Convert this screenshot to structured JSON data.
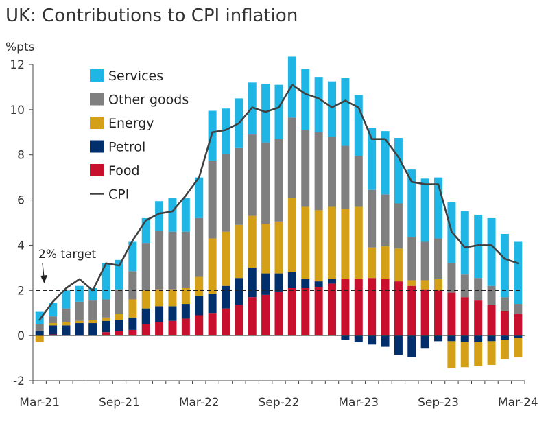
{
  "chart_data": {
    "type": "bar",
    "stacked": true,
    "title": "UK: Contributions to CPI inflation",
    "ylabel": "%pts",
    "ylim": [
      -2,
      12
    ],
    "yticks": [
      -2,
      0,
      2,
      4,
      6,
      8,
      10,
      12
    ],
    "xtick_labels": [
      "Mar-21",
      "Sep-21",
      "Mar-22",
      "Sep-22",
      "Mar-23",
      "Sep-23",
      "Mar-24"
    ],
    "categories": [
      "Mar-21",
      "Apr-21",
      "May-21",
      "Jun-21",
      "Jul-21",
      "Aug-21",
      "Sep-21",
      "Oct-21",
      "Nov-21",
      "Dec-21",
      "Jan-22",
      "Feb-22",
      "Mar-22",
      "Apr-22",
      "May-22",
      "Jun-22",
      "Jul-22",
      "Aug-22",
      "Sep-22",
      "Oct-22",
      "Nov-22",
      "Dec-22",
      "Jan-23",
      "Feb-23",
      "Mar-23",
      "Apr-23",
      "May-23",
      "Jun-23",
      "Jul-23",
      "Aug-23",
      "Sep-23",
      "Oct-23",
      "Nov-23",
      "Dec-23",
      "Jan-24",
      "Feb-24",
      "Mar-24"
    ],
    "series": [
      {
        "name": "Food",
        "color": "#c8102e",
        "values": [
          0.0,
          0.05,
          0.0,
          0.0,
          0.0,
          0.15,
          0.2,
          0.25,
          0.5,
          0.6,
          0.65,
          0.75,
          0.9,
          1.0,
          1.2,
          1.35,
          1.7,
          1.8,
          1.95,
          2.1,
          2.1,
          2.15,
          2.3,
          2.5,
          2.5,
          2.55,
          2.5,
          2.4,
          2.2,
          2.05,
          2.0,
          1.9,
          1.7,
          1.55,
          1.35,
          1.1,
          0.95
        ]
      },
      {
        "name": "Petrol",
        "color": "#002f6c",
        "values": [
          0.2,
          0.4,
          0.45,
          0.55,
          0.55,
          0.5,
          0.5,
          0.55,
          0.7,
          0.7,
          0.65,
          0.65,
          0.85,
          0.85,
          1.0,
          1.2,
          1.3,
          0.95,
          0.8,
          0.7,
          0.4,
          0.25,
          0.2,
          -0.2,
          -0.3,
          -0.4,
          -0.5,
          -0.85,
          -0.95,
          -0.55,
          -0.25,
          -0.25,
          -0.3,
          -0.3,
          -0.25,
          -0.2,
          -0.1
        ]
      },
      {
        "name": "Energy",
        "color": "#d4a017",
        "values": [
          -0.3,
          0.1,
          0.15,
          0.1,
          0.15,
          0.15,
          0.25,
          0.8,
          0.8,
          0.75,
          0.75,
          0.7,
          0.85,
          2.45,
          2.4,
          2.35,
          2.3,
          2.2,
          2.3,
          3.3,
          3.2,
          3.15,
          3.2,
          3.1,
          3.2,
          1.35,
          1.45,
          1.45,
          0.25,
          0.4,
          0.5,
          -1.2,
          -1.1,
          -1.05,
          -1.05,
          -0.85,
          -0.85
        ]
      },
      {
        "name": "Other goods",
        "color": "#7f7f7f",
        "values": [
          0.3,
          0.3,
          0.6,
          0.85,
          0.85,
          0.8,
          1.1,
          1.25,
          2.1,
          2.6,
          2.55,
          2.5,
          2.6,
          3.45,
          3.45,
          3.4,
          3.6,
          3.6,
          3.65,
          3.55,
          3.4,
          3.45,
          3.1,
          2.8,
          2.25,
          2.55,
          2.3,
          2.0,
          1.9,
          1.7,
          1.8,
          1.3,
          1.0,
          1.0,
          0.85,
          0.6,
          0.45
        ]
      },
      {
        "name": "Services",
        "color": "#1fb6e6",
        "values": [
          0.55,
          0.6,
          0.8,
          0.7,
          0.55,
          1.6,
          1.3,
          1.3,
          1.1,
          1.3,
          1.5,
          1.5,
          1.8,
          2.2,
          2.0,
          2.2,
          2.3,
          2.6,
          2.4,
          2.7,
          2.7,
          2.45,
          2.45,
          3.0,
          2.7,
          2.75,
          2.8,
          2.9,
          3.0,
          2.8,
          2.7,
          2.7,
          2.8,
          2.8,
          3.0,
          2.8,
          2.75
        ]
      }
    ],
    "cpi": {
      "name": "CPI",
      "color": "#404040",
      "values": [
        0.7,
        1.5,
        2.1,
        2.5,
        2.0,
        3.2,
        3.1,
        4.2,
        5.1,
        5.4,
        5.5,
        6.2,
        7.0,
        9.0,
        9.1,
        9.4,
        10.1,
        9.9,
        10.1,
        11.1,
        10.7,
        10.5,
        10.1,
        10.4,
        10.1,
        8.7,
        8.7,
        7.9,
        6.8,
        6.7,
        6.7,
        4.6,
        3.9,
        4.0,
        4.0,
        3.4,
        3.2
      ]
    },
    "reference_line": {
      "value": 2,
      "label": "2% target"
    },
    "legend": {
      "position": "top-left",
      "entries": [
        {
          "label": "Services",
          "color": "#1fb6e6",
          "kind": "box"
        },
        {
          "label": "Other goods",
          "color": "#7f7f7f",
          "kind": "box"
        },
        {
          "label": "Energy",
          "color": "#d4a017",
          "kind": "box"
        },
        {
          "label": "Petrol",
          "color": "#002f6c",
          "kind": "box"
        },
        {
          "label": "Food",
          "color": "#c8102e",
          "kind": "box"
        },
        {
          "label": "CPI",
          "color": "#404040",
          "kind": "line"
        }
      ]
    }
  }
}
